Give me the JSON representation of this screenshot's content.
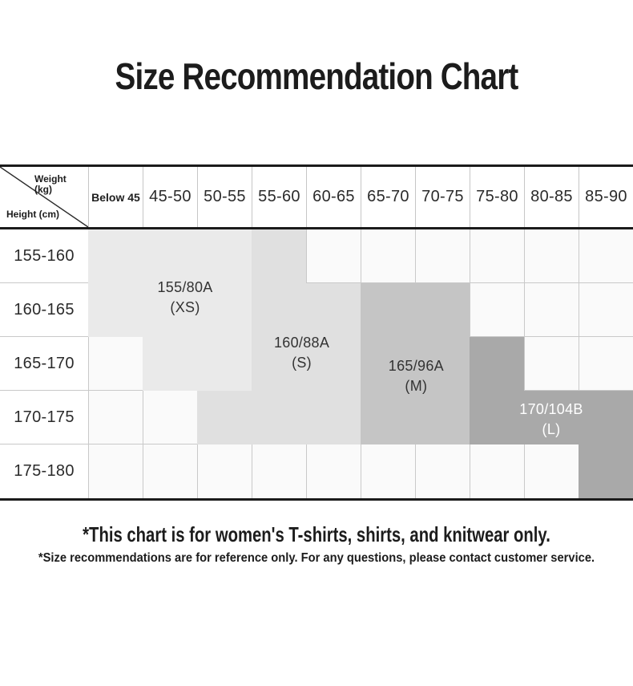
{
  "page": {
    "title": "Size Recommendation Chart",
    "footnotes": {
      "primary": "*This chart is for women's T-shirts, shirts, and knitwear only.",
      "secondary": "*Size recommendations are for reference only. For any questions, please contact customer service."
    }
  },
  "chart_data": {
    "type": "table",
    "title": "Size Recommendation Chart",
    "corner_header": {
      "column_axis": "Weight",
      "column_axis_unit": "(kg)",
      "row_axis": "Height (cm)"
    },
    "columns_weight_kg": [
      "Below 45",
      "45-50",
      "50-55",
      "55-60",
      "60-65",
      "65-70",
      "70-75",
      "75-80",
      "80-85",
      "85-90"
    ],
    "rows_height_cm": [
      "155-160",
      "160-165",
      "165-170",
      "170-175",
      "175-180"
    ],
    "size_regions": [
      {
        "size_label": "155/80A",
        "size_code": "(XS)",
        "fill": "#eaeaea",
        "text_color": "#333333",
        "blocks": [
          {
            "row": 0,
            "col_start": 0,
            "col_end": 2
          },
          {
            "row": 1,
            "col_start": 0,
            "col_end": 2
          },
          {
            "row": 2,
            "col_start": 1,
            "col_end": 2
          }
        ],
        "label_pos": {
          "col": 1.78,
          "row": 1.27
        }
      },
      {
        "size_label": "160/88A",
        "size_code": "(S)",
        "fill": "#e0e0e0",
        "text_color": "#333333",
        "blocks": [
          {
            "row": 0,
            "col_start": 3,
            "col_end": 3
          },
          {
            "row": 1,
            "col_start": 3,
            "col_end": 4
          },
          {
            "row": 2,
            "col_start": 3,
            "col_end": 4
          },
          {
            "row": 3,
            "col_start": 2,
            "col_end": 4
          }
        ],
        "label_pos": {
          "col": 3.92,
          "row": 2.3
        }
      },
      {
        "size_label": "165/96A",
        "size_code": "(M)",
        "fill": "#c5c5c5",
        "text_color": "#333333",
        "blocks": [
          {
            "row": 1,
            "col_start": 5,
            "col_end": 6
          },
          {
            "row": 2,
            "col_start": 5,
            "col_end": 6
          },
          {
            "row": 3,
            "col_start": 5,
            "col_end": 6
          }
        ],
        "label_pos": {
          "col": 6.02,
          "row": 2.73
        }
      },
      {
        "size_label": "170/104B",
        "size_code": "(L)",
        "fill": "#a9a9a9",
        "text_color": "#ffffff",
        "blocks": [
          {
            "row": 2,
            "col_start": 7,
            "col_end": 7
          },
          {
            "row": 3,
            "col_start": 7,
            "col_end": 9
          },
          {
            "row": 4,
            "col_start": 9,
            "col_end": 9
          }
        ],
        "label_pos": {
          "col": 8.5,
          "row": 3.53
        }
      }
    ],
    "layout_hints": {
      "grid": "on",
      "legend_position": "none",
      "empty_cell_color": "#fafafa",
      "grid_line_color": "#c9c9c9",
      "heavy_line_color": "#1b1b1b"
    }
  }
}
